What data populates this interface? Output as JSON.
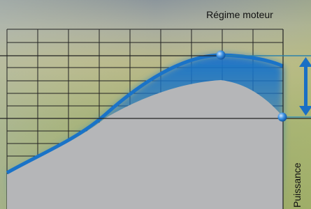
{
  "header": {
    "x_axis_label": "Régime moteur",
    "y_axis_label": "Puissance"
  }
}
